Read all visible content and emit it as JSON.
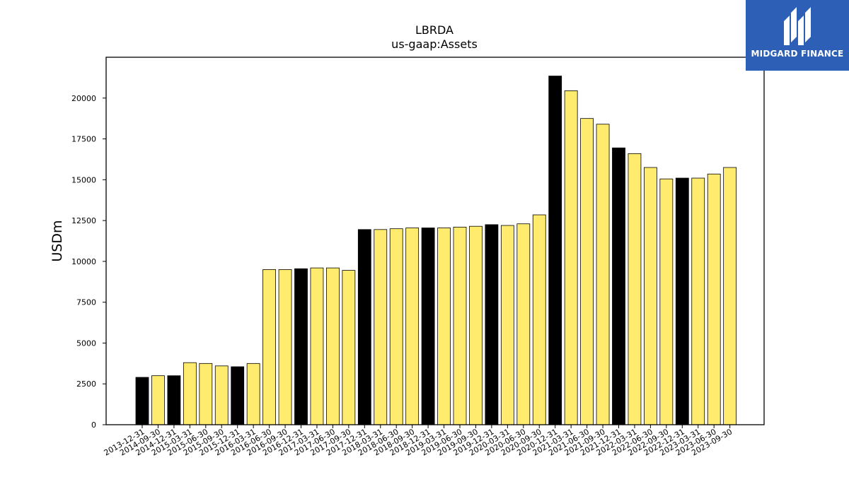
{
  "chart_data": {
    "type": "bar",
    "title": "LBRDA",
    "subtitle": "us-gaap:Assets",
    "xlabel": "",
    "ylabel": "USDm",
    "ylim": [
      0,
      22500
    ],
    "yticks": [
      0,
      2500,
      5000,
      7500,
      10000,
      12500,
      15000,
      17500,
      20000
    ],
    "grid": false,
    "colors": {
      "annual": "#000000",
      "quarterly": "#ffec6e",
      "edge": "#000000"
    },
    "categories": [
      "2013-12-31",
      "2014-09-30",
      "2014-12-31",
      "2015-03-31",
      "2015-06-30",
      "2015-09-30",
      "2015-12-31",
      "2016-03-31",
      "2016-06-30",
      "2016-09-30",
      "2016-12-31",
      "2017-03-31",
      "2017-06-30",
      "2017-09-30",
      "2017-12-31",
      "2018-03-31",
      "2018-06-30",
      "2018-09-30",
      "2018-12-31",
      "2019-03-31",
      "2019-06-30",
      "2019-09-30",
      "2019-12-31",
      "2020-03-31",
      "2020-06-30",
      "2020-09-30",
      "2020-12-31",
      "2021-03-31",
      "2021-06-30",
      "2021-09-30",
      "2021-12-31",
      "2022-03-31",
      "2022-06-30",
      "2022-09-30",
      "2022-12-31",
      "2023-03-31",
      "2023-06-30",
      "2023-09-30"
    ],
    "values": [
      2900,
      3000,
      3000,
      3800,
      3750,
      3600,
      3550,
      3750,
      9500,
      9500,
      9550,
      9600,
      9600,
      9450,
      11950,
      11950,
      12000,
      12050,
      12050,
      12050,
      12100,
      12150,
      12250,
      12200,
      12300,
      12850,
      21350,
      20450,
      18750,
      18400,
      16950,
      16600,
      15750,
      15050,
      15100,
      15100,
      15350,
      15750
    ],
    "annual": [
      true,
      false,
      true,
      false,
      false,
      false,
      true,
      false,
      false,
      false,
      true,
      false,
      false,
      false,
      true,
      false,
      false,
      false,
      true,
      false,
      false,
      false,
      true,
      false,
      false,
      false,
      true,
      false,
      false,
      false,
      true,
      false,
      false,
      false,
      true,
      false,
      false,
      false
    ]
  },
  "logo": {
    "text": "MIDGARD FINANCE",
    "icon": "midgard-logo-icon"
  }
}
